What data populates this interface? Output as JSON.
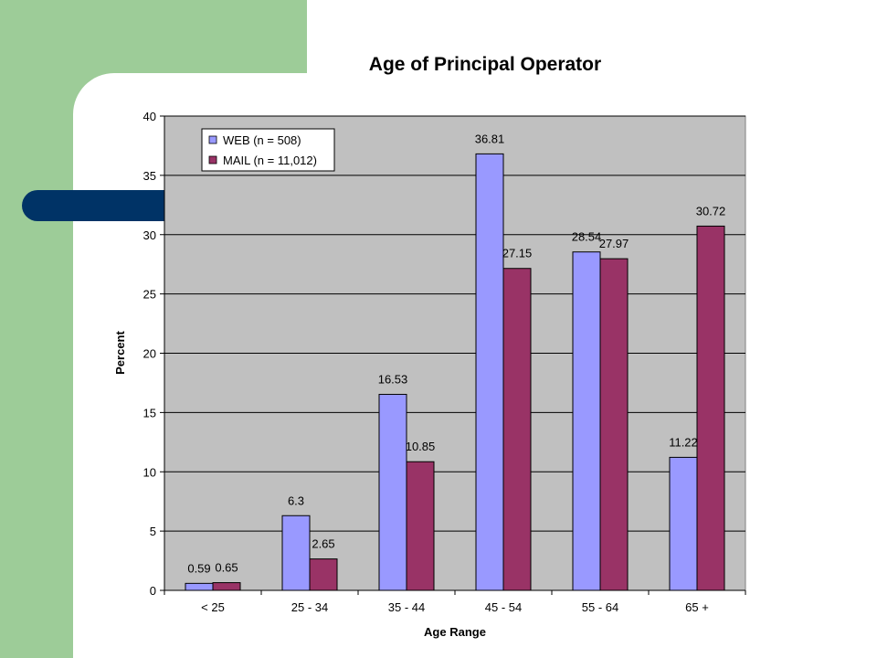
{
  "slide": {
    "colors": {
      "background": "#ffffff",
      "green_panel": "#9dcc98",
      "navy_bar": "#003366"
    }
  },
  "chart_data": {
    "type": "bar",
    "title": "Age of Principal Operator",
    "xlabel": "Age Range",
    "ylabel": "Percent",
    "ylim": [
      0,
      40
    ],
    "yticks": [
      0,
      5,
      10,
      15,
      20,
      25,
      30,
      35,
      40
    ],
    "grid": true,
    "legend_position": "top-left",
    "categories": [
      "< 25",
      "25 - 34",
      "35 - 44",
      "45 - 54",
      "55 - 64",
      "65 +"
    ],
    "series": [
      {
        "name": "WEB (n = 508)",
        "color": "#9999ff",
        "values": [
          0.59,
          6.3,
          16.53,
          36.81,
          28.54,
          11.22
        ],
        "labels": [
          "0.59",
          "6.3",
          "16.53",
          "36.81",
          "28.54",
          "11.22"
        ]
      },
      {
        "name": "MAIL (n = 11,012)",
        "color": "#993366",
        "values": [
          0.65,
          2.65,
          10.85,
          27.15,
          27.97,
          30.72
        ],
        "labels": [
          "0.65",
          "2.65",
          "10.85",
          "27.15",
          "27.97",
          "30.72"
        ]
      }
    ],
    "plot_background": "#c0c0c0"
  }
}
